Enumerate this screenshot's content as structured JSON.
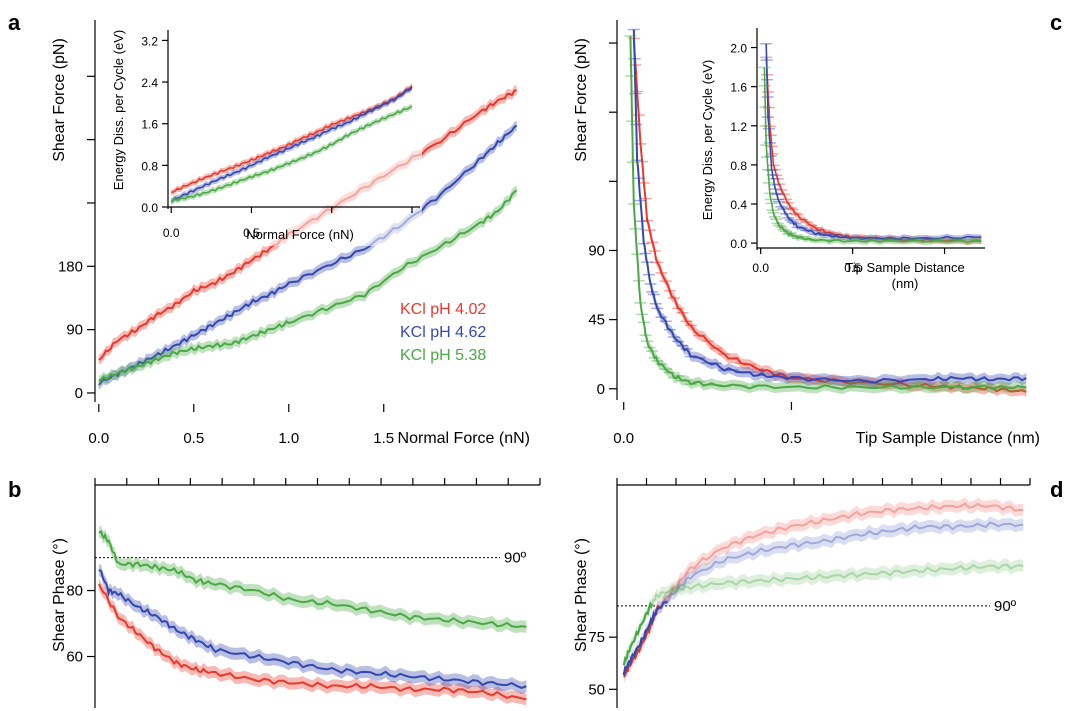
{
  "panel_letters": {
    "a": "a",
    "b": "b",
    "c": "c",
    "d": "d"
  },
  "colors": {
    "red": "#e8392c",
    "blue": "#3548b0",
    "green": "#4aa845"
  },
  "chart_data": [
    {
      "id": "a",
      "type": "line",
      "title": "",
      "xlabel": "Normal Force (nN)",
      "ylabel": "Shear Force (pN)",
      "xlim": [
        -0.02,
        2.27
      ],
      "ylim": [
        -10,
        530
      ],
      "xticks": [
        0,
        0.5,
        1.0,
        1.5
      ],
      "xtick_labels": [
        "0.0",
        "0.5",
        "1.0",
        "1.5"
      ],
      "yticks": [
        0,
        90,
        180,
        270,
        360,
        450
      ],
      "ytick_labels": [
        "0",
        "90",
        "180",
        "",
        "",
        ""
      ],
      "legend": [
        "KCl pH 4.02",
        "KCl pH 4.62",
        "KCl pH 5.38"
      ],
      "legend_position": "center-right",
      "series": [
        {
          "name": "KCl pH 4.02",
          "color": "red",
          "x": [
            0.0,
            0.1,
            0.2,
            0.3,
            0.4,
            0.5,
            0.6,
            0.7,
            0.8,
            0.9,
            1.0,
            1.2,
            1.4,
            1.6,
            1.8,
            2.0,
            2.1,
            2.2
          ],
          "y": [
            47,
            75,
            90,
            110,
            125,
            145,
            155,
            170,
            188,
            205,
            225,
            258,
            292,
            325,
            358,
            398,
            415,
            430
          ]
        },
        {
          "name": "KCl pH 4.62",
          "color": "blue",
          "x": [
            0.0,
            0.1,
            0.2,
            0.3,
            0.4,
            0.5,
            0.6,
            0.7,
            0.8,
            0.9,
            1.0,
            1.2,
            1.4,
            1.6,
            1.8,
            2.0,
            2.1,
            2.2
          ],
          "y": [
            14,
            27,
            40,
            53,
            67,
            82,
            97,
            112,
            128,
            140,
            155,
            180,
            205,
            240,
            282,
            330,
            355,
            380
          ]
        },
        {
          "name": "KCl pH 5.38",
          "color": "green",
          "x": [
            0.0,
            0.1,
            0.2,
            0.3,
            0.4,
            0.5,
            0.6,
            0.7,
            0.8,
            0.9,
            1.0,
            1.2,
            1.4,
            1.6,
            1.8,
            2.0,
            2.1,
            2.2
          ],
          "y": [
            18,
            28,
            37,
            47,
            57,
            63,
            67,
            70,
            80,
            90,
            100,
            120,
            140,
            178,
            208,
            240,
            258,
            288
          ]
        }
      ]
    },
    {
      "id": "a-inset",
      "type": "line",
      "title": "",
      "xlabel": "Normal Force (nN)",
      "ylabel": "Energy Diss. per Cycle (eV)",
      "xlim": [
        -0.02,
        1.55
      ],
      "ylim": [
        0,
        3.4
      ],
      "xticks": [
        0,
        0.5,
        1.0,
        1.5
      ],
      "xtick_labels": [
        "0.0",
        "0.5",
        "",
        ""
      ],
      "yticks": [
        0.0,
        0.8,
        1.6,
        2.4,
        3.2
      ],
      "ytick_labels": [
        "0.0",
        "0.8",
        "1.6",
        "2.4",
        "3.2"
      ],
      "series": [
        {
          "name": "KCl pH 4.02",
          "color": "red",
          "x": [
            0.0,
            0.1,
            0.2,
            0.3,
            0.4,
            0.5,
            0.6,
            0.7,
            0.8,
            0.9,
            1.0,
            1.1,
            1.2,
            1.3,
            1.4,
            1.5
          ],
          "y": [
            0.28,
            0.42,
            0.55,
            0.67,
            0.78,
            0.9,
            1.03,
            1.15,
            1.3,
            1.43,
            1.58,
            1.7,
            1.82,
            1.95,
            2.1,
            2.32
          ]
        },
        {
          "name": "KCl pH 4.62",
          "color": "blue",
          "x": [
            0.0,
            0.1,
            0.2,
            0.3,
            0.4,
            0.5,
            0.6,
            0.7,
            0.8,
            0.9,
            1.0,
            1.1,
            1.2,
            1.3,
            1.4,
            1.5
          ],
          "y": [
            0.12,
            0.26,
            0.4,
            0.54,
            0.66,
            0.8,
            0.95,
            1.08,
            1.22,
            1.35,
            1.5,
            1.62,
            1.78,
            1.93,
            2.08,
            2.3
          ]
        },
        {
          "name": "KCl pH 5.38",
          "color": "green",
          "x": [
            0.0,
            0.1,
            0.2,
            0.3,
            0.4,
            0.5,
            0.6,
            0.7,
            0.8,
            0.9,
            1.0,
            1.1,
            1.2,
            1.3,
            1.4,
            1.5
          ],
          "y": [
            0.12,
            0.18,
            0.26,
            0.36,
            0.47,
            0.58,
            0.68,
            0.8,
            0.92,
            1.05,
            1.2,
            1.38,
            1.53,
            1.67,
            1.8,
            1.93
          ]
        }
      ]
    },
    {
      "id": "b",
      "type": "line",
      "title": "",
      "xlabel": "",
      "ylabel": "Shear Phase (°)",
      "xlim": [
        -0.02,
        2.27
      ],
      "ylim": [
        45,
        112
      ],
      "yticks": [
        60,
        80
      ],
      "ytick_labels": [
        "60",
        "80"
      ],
      "reference_line": {
        "y": 90,
        "label": "90º"
      },
      "series": [
        {
          "name": "KCl pH 4.02",
          "color": "red",
          "x": [
            0.0,
            0.1,
            0.2,
            0.3,
            0.4,
            0.5,
            0.6,
            0.8,
            1.0,
            1.2,
            1.4,
            1.6,
            1.8,
            2.0,
            2.2
          ],
          "y": [
            82,
            72,
            67,
            62,
            58,
            56,
            55,
            53,
            52,
            51,
            51,
            50,
            50,
            49,
            47
          ]
        },
        {
          "name": "KCl pH 4.62",
          "color": "blue",
          "x": [
            0.0,
            0.05,
            0.1,
            0.2,
            0.3,
            0.4,
            0.5,
            0.6,
            0.8,
            1.0,
            1.2,
            1.4,
            1.6,
            1.8,
            2.0,
            2.2
          ],
          "y": [
            87,
            80,
            79,
            75,
            72,
            68,
            65,
            62,
            60,
            58,
            56,
            55,
            54,
            53,
            52,
            51
          ]
        },
        {
          "name": "KCl pH 5.38",
          "color": "green",
          "x": [
            0.0,
            0.05,
            0.1,
            0.2,
            0.3,
            0.4,
            0.5,
            0.6,
            0.8,
            1.0,
            1.2,
            1.4,
            1.6,
            1.8,
            2.0,
            2.2
          ],
          "y": [
            98,
            95,
            88,
            88,
            87,
            86,
            83,
            82,
            80,
            77,
            76,
            74,
            72,
            71,
            70,
            69
          ]
        }
      ]
    },
    {
      "id": "c",
      "type": "line",
      "title": "",
      "xlabel": "Tip Sample Distance (nm)",
      "ylabel": "Shear Force (pN)",
      "xlim": [
        -0.02,
        1.22
      ],
      "ylim": [
        -6,
        240
      ],
      "xticks": [
        0,
        0.5
      ],
      "xtick_labels": [
        "0.0",
        "0.5"
      ],
      "yticks": [
        0,
        45,
        90,
        135,
        180,
        225
      ],
      "ytick_labels": [
        "0",
        "45",
        "90",
        "",
        "",
        ""
      ],
      "series": [
        {
          "name": "KCl pH 4.02",
          "color": "red",
          "x": [
            0.03,
            0.05,
            0.07,
            0.1,
            0.15,
            0.2,
            0.3,
            0.4,
            0.5,
            0.7,
            0.9,
            1.0,
            1.1,
            1.2
          ],
          "y": [
            228,
            160,
            110,
            82,
            58,
            40,
            22,
            13,
            7,
            4,
            2,
            1,
            0,
            -2
          ]
        },
        {
          "name": "KCl pH 4.62",
          "color": "blue",
          "x": [
            0.03,
            0.04,
            0.06,
            0.08,
            0.1,
            0.15,
            0.2,
            0.3,
            0.4,
            0.5,
            0.7,
            0.9,
            1.0,
            1.1,
            1.2
          ],
          "y": [
            235,
            150,
            95,
            68,
            52,
            34,
            22,
            13,
            9,
            7,
            5,
            6,
            7,
            6,
            7
          ]
        },
        {
          "name": "KCl pH 5.38",
          "color": "green",
          "x": [
            0.02,
            0.03,
            0.05,
            0.07,
            0.1,
            0.15,
            0.2,
            0.3,
            0.5,
            0.7,
            0.9,
            1.1,
            1.2
          ],
          "y": [
            230,
            120,
            55,
            30,
            18,
            8,
            4,
            2,
            1,
            1,
            1,
            1,
            1
          ]
        }
      ]
    },
    {
      "id": "c-inset",
      "type": "line",
      "title": "",
      "xlabel": "Tip Sample Distance\n(nm)",
      "ylabel": "Energy Diss. per Cycle (eV)",
      "xlim": [
        -0.02,
        1.22
      ],
      "ylim": [
        -0.05,
        2.2
      ],
      "xticks": [
        0,
        0.5,
        1.0
      ],
      "xtick_labels": [
        "0.0",
        "0.5",
        ""
      ],
      "yticks": [
        0.0,
        0.4,
        0.8,
        1.2,
        1.6,
        2.0
      ],
      "ytick_labels": [
        "0.0",
        "0.4",
        "0.8",
        "1.2",
        "1.6",
        "2.0"
      ],
      "series": [
        {
          "name": "KCl pH 4.02",
          "color": "red",
          "x": [
            0.03,
            0.05,
            0.07,
            0.1,
            0.15,
            0.2,
            0.3,
            0.4,
            0.5,
            0.7,
            0.9,
            1.2
          ],
          "y": [
            1.9,
            1.2,
            0.8,
            0.6,
            0.4,
            0.28,
            0.15,
            0.09,
            0.06,
            0.04,
            0.03,
            0.02
          ]
        },
        {
          "name": "KCl pH 4.62",
          "color": "blue",
          "x": [
            0.03,
            0.04,
            0.06,
            0.08,
            0.1,
            0.15,
            0.2,
            0.3,
            0.4,
            0.5,
            0.7,
            0.9,
            1.2
          ],
          "y": [
            2.05,
            1.3,
            0.75,
            0.55,
            0.42,
            0.26,
            0.17,
            0.1,
            0.07,
            0.05,
            0.05,
            0.05,
            0.06
          ]
        },
        {
          "name": "KCl pH 5.38",
          "color": "green",
          "x": [
            0.02,
            0.03,
            0.05,
            0.07,
            0.1,
            0.15,
            0.2,
            0.3,
            0.5,
            0.7,
            1.0,
            1.2
          ],
          "y": [
            1.8,
            1.0,
            0.5,
            0.3,
            0.18,
            0.1,
            0.06,
            0.03,
            0.02,
            0.02,
            0.02,
            0.02
          ]
        }
      ]
    },
    {
      "id": "d",
      "type": "line",
      "title": "",
      "xlabel": "",
      "ylabel": "Shear Phase (°)",
      "xlim": [
        -0.02,
        1.22
      ],
      "ylim": [
        42,
        148
      ],
      "yticks": [
        50,
        75
      ],
      "ytick_labels": [
        "50",
        "75"
      ],
      "reference_line": {
        "y": 90,
        "label": "90º"
      },
      "series": [
        {
          "name": "KCl pH 4.02",
          "color": "red",
          "x": [
            0.0,
            0.02,
            0.05,
            0.08,
            0.1,
            0.15,
            0.2,
            0.3,
            0.4,
            0.5,
            0.6,
            0.7,
            0.8,
            0.9,
            1.0,
            1.1,
            1.2
          ],
          "y": [
            56,
            62,
            70,
            80,
            88,
            98,
            108,
            118,
            124,
            128,
            131,
            134,
            136,
            137,
            138,
            138,
            136
          ]
        },
        {
          "name": "KCl pH 4.62",
          "color": "blue",
          "x": [
            0.0,
            0.02,
            0.05,
            0.08,
            0.1,
            0.15,
            0.2,
            0.3,
            0.4,
            0.5,
            0.6,
            0.7,
            0.8,
            0.9,
            1.0,
            1.1,
            1.2
          ],
          "y": [
            58,
            64,
            72,
            82,
            88,
            96,
            104,
            112,
            116,
            119,
            121,
            124,
            126,
            128,
            128,
            129,
            129
          ]
        },
        {
          "name": "KCl pH 5.38",
          "color": "green",
          "x": [
            0.0,
            0.02,
            0.05,
            0.08,
            0.1,
            0.15,
            0.2,
            0.3,
            0.4,
            0.5,
            0.6,
            0.7,
            0.8,
            0.9,
            1.0,
            1.1,
            1.2
          ],
          "y": [
            62,
            70,
            80,
            90,
            95,
            98,
            99,
            101,
            102,
            103,
            104,
            105,
            106,
            107,
            108,
            109,
            109
          ]
        }
      ]
    }
  ]
}
